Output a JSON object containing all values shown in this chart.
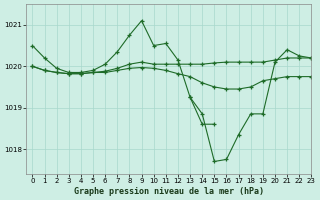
{
  "title": "Graphe pression niveau de la mer (hPa)",
  "bg_color": "#ceeee4",
  "grid_color": "#a8d8cc",
  "line_color": "#1e6b28",
  "xlim": [
    -0.5,
    23
  ],
  "ylim": [
    1017.4,
    1021.5
  ],
  "yticks": [
    1018,
    1019,
    1020,
    1021
  ],
  "xticks": [
    0,
    1,
    2,
    3,
    4,
    5,
    6,
    7,
    8,
    9,
    10,
    11,
    12,
    13,
    14,
    15,
    16,
    17,
    18,
    19,
    20,
    21,
    22,
    23
  ],
  "series": [
    {
      "x": [
        0,
        1,
        2,
        3,
        4,
        5,
        6,
        7,
        8,
        9,
        10,
        11,
        12,
        13,
        14,
        15,
        16,
        17,
        18,
        19,
        20,
        21,
        22,
        23
      ],
      "y": [
        1020.5,
        1020.2,
        1019.95,
        1019.85,
        1019.85,
        1019.9,
        1020.05,
        1020.35,
        1020.75,
        1021.1,
        1020.5,
        1020.55,
        1020.15,
        1019.25,
        1018.6,
        1018.6,
        null,
        null,
        null,
        null,
        null,
        null,
        null,
        null
      ]
    },
    {
      "x": [
        0,
        1,
        2,
        3,
        4,
        5,
        6,
        7,
        8,
        9,
        10,
        11,
        12,
        13,
        14,
        15,
        16,
        17,
        18,
        19,
        20,
        21,
        22,
        23
      ],
      "y": [
        1020.0,
        1019.9,
        1019.85,
        1019.82,
        1019.82,
        1019.85,
        1019.88,
        1019.95,
        1020.05,
        1020.1,
        1020.05,
        1020.05,
        1020.05,
        1020.05,
        1020.05,
        1020.08,
        1020.1,
        1020.1,
        1020.1,
        1020.1,
        1020.15,
        1020.2,
        1020.2,
        1020.2
      ]
    },
    {
      "x": [
        0,
        1,
        2,
        3,
        4,
        5,
        6,
        7,
        8,
        9,
        10,
        11,
        12,
        13,
        14,
        15,
        16,
        17,
        18,
        19,
        20,
        21,
        22,
        23
      ],
      "y": [
        1020.0,
        1019.9,
        1019.85,
        1019.82,
        1019.82,
        1019.85,
        1019.85,
        1019.9,
        1019.95,
        1019.97,
        1019.95,
        1019.9,
        1019.82,
        1019.75,
        1019.6,
        1019.5,
        1019.45,
        1019.45,
        1019.5,
        1019.65,
        1019.7,
        1019.75,
        1019.75,
        1019.75
      ]
    },
    {
      "x": [
        13,
        14,
        15,
        16,
        17,
        18,
        19,
        20,
        21,
        22,
        23
      ],
      "y": [
        1019.25,
        1018.85,
        1017.7,
        1017.75,
        1018.35,
        1018.85,
        1018.85,
        1020.1,
        1020.4,
        1020.25,
        1020.2
      ]
    }
  ]
}
